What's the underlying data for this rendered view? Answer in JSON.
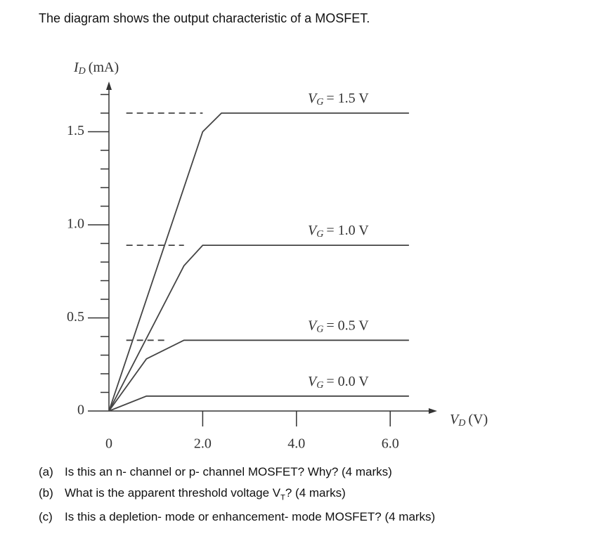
{
  "header": {
    "title": "The diagram shows the output characteristic of a MOSFET."
  },
  "chart_data": {
    "type": "line",
    "y_label": {
      "symbol": "I",
      "sub": "D",
      "unit": "(mA)"
    },
    "x_label": {
      "symbol": "V",
      "sub": "D",
      "unit": "(V)"
    },
    "xlim": [
      0,
      7
    ],
    "ylim": [
      0,
      1.77
    ],
    "xticks": [
      0,
      {
        "value": 2,
        "label": "2.0"
      },
      {
        "value": 4,
        "label": "4.0"
      },
      {
        "value": 6,
        "label": "6.0"
      }
    ],
    "yticks": [
      0,
      0.5,
      {
        "value": 1,
        "label": "1.0"
      },
      1.5
    ],
    "yminorticks": [
      0.1,
      0.2,
      0.3,
      0.4,
      0.6,
      0.7,
      0.8,
      0.9,
      1.1,
      1.2,
      1.3,
      1.4,
      1.6,
      1.7
    ],
    "series": [
      {
        "name": {
          "symbol": "V",
          "sub": "G",
          "rest": "= 1.5 V"
        },
        "color": "#444444",
        "x": [
          0,
          2.0,
          2.4,
          6.4
        ],
        "values": [
          0,
          1.5,
          1.6,
          1.6
        ],
        "dash_x": [
          0.37,
          2.0
        ]
      },
      {
        "name": {
          "symbol": "V",
          "sub": "G",
          "rest": "= 1.0 V"
        },
        "color": "#444444",
        "x": [
          0,
          1.6,
          2.0,
          6.4
        ],
        "values": [
          0,
          0.78,
          0.89,
          0.89
        ],
        "dash_x": [
          0.37,
          1.6
        ]
      },
      {
        "name": {
          "symbol": "V",
          "sub": "G",
          "rest": "= 0.5 V"
        },
        "color": "#444444",
        "x": [
          0,
          0.8,
          1.6,
          6.4
        ],
        "values": [
          0,
          0.28,
          0.38,
          0.38
        ],
        "dash_x": [
          0.37,
          1.2
        ]
      },
      {
        "name": {
          "symbol": "V",
          "sub": "G",
          "rest": "= 0.0 V"
        },
        "color": "#444444",
        "x": [
          0,
          0.8,
          6.4
        ],
        "values": [
          0,
          0.08,
          0.08
        ]
      }
    ]
  },
  "questions": [
    {
      "label": "(a)",
      "text": "Is this an n- channel or p- channel MOSFET? Why? (4 marks)"
    },
    {
      "label": "(b)",
      "text": "What is the apparent threshold voltage V",
      "sub": "T",
      "rest": "? (4 marks)"
    },
    {
      "label": "(c)",
      "text": "Is this a depletion- mode or enhancement- mode MOSFET? (4 marks)"
    }
  ]
}
